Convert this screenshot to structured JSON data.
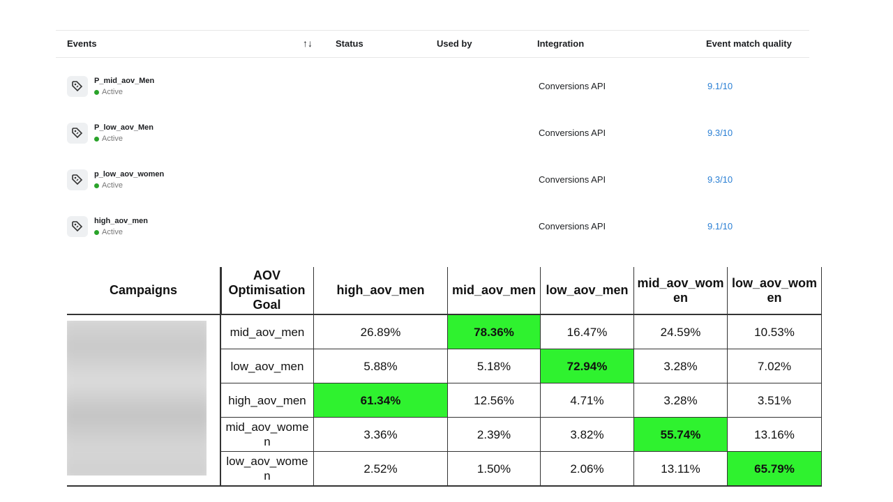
{
  "events_table": {
    "headers": [
      "Events",
      "Status",
      "Used by",
      "Integration",
      "Event match quality"
    ],
    "sort_icon": "↑↓",
    "rows": [
      {
        "name": "P_mid_aov_Men",
        "status": "Active",
        "integration": "Conversions API",
        "quality": "9.1/10"
      },
      {
        "name": "P_low_aov_Men",
        "status": "Active",
        "integration": "Conversions API",
        "quality": "9.3/10"
      },
      {
        "name": "p_low_aov_women",
        "status": "Active",
        "integration": "Conversions API",
        "quality": "9.3/10"
      },
      {
        "name": "high_aov_men",
        "status": "Active",
        "integration": "Conversions API",
        "quality": "9.1/10"
      }
    ]
  },
  "campaign_table": {
    "headers": [
      "Campaigns",
      "AOV Optimisation Goal",
      "high_aov_men",
      "mid_aov_men",
      "low_aov_men",
      "mid_aov_women",
      "low_aov_women"
    ],
    "highlight_color": "#2ff22f",
    "rows": [
      {
        "goal": "mid_aov_men",
        "cells": [
          "26.89%",
          "78.36%",
          "16.47%",
          "24.59%",
          "10.53%"
        ],
        "highlight": 1
      },
      {
        "goal": "low_aov_men",
        "cells": [
          "5.88%",
          "5.18%",
          "72.94%",
          "3.28%",
          "7.02%"
        ],
        "highlight": 2
      },
      {
        "goal": "high_aov_men",
        "cells": [
          "61.34%",
          "12.56%",
          "4.71%",
          "3.28%",
          "3.51%"
        ],
        "highlight": 0
      },
      {
        "goal": "mid_aov_women",
        "cells": [
          "3.36%",
          "2.39%",
          "3.82%",
          "55.74%",
          "13.16%"
        ],
        "highlight": 3
      },
      {
        "goal": "low_aov_women",
        "cells": [
          "2.52%",
          "1.50%",
          "2.06%",
          "13.11%",
          "65.79%"
        ],
        "highlight": 4
      }
    ]
  }
}
